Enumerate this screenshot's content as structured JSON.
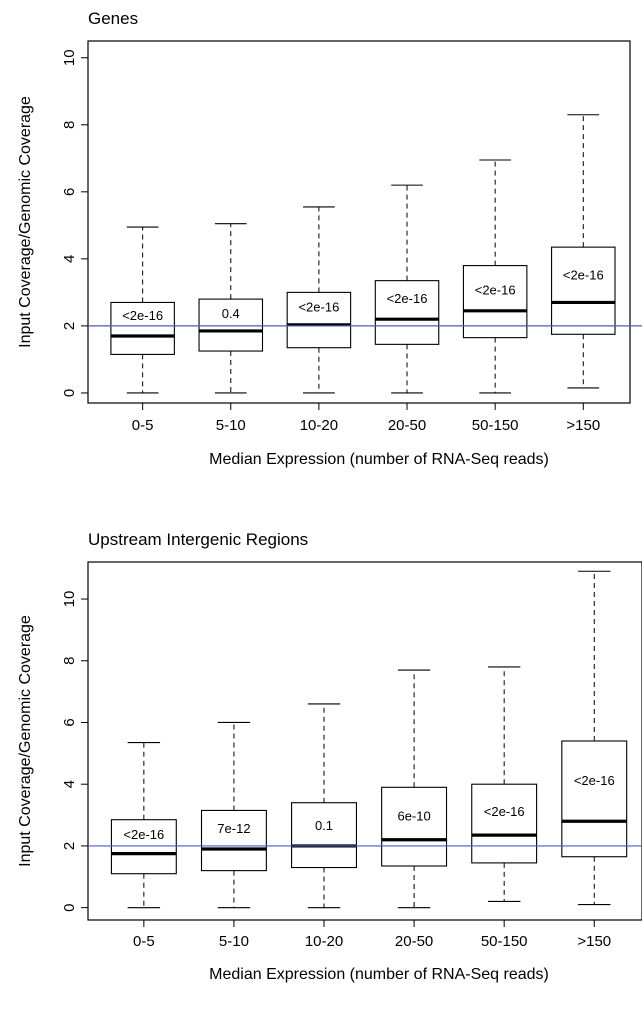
{
  "chart_data": [
    {
      "type": "box",
      "title": "Genes",
      "xlabel": "Median Expression (number of RNA-Seq reads)",
      "ylabel": "Input Coverage/Genomic Coverage",
      "ylim": [
        -0.3,
        10.5
      ],
      "yticks": [
        0,
        2,
        4,
        6,
        8,
        10
      ],
      "reference_line": 2.0,
      "reference_line_color": "#4a5bc4",
      "categories": [
        "0-5",
        "5-10",
        "10-20",
        "20-50",
        "50-150",
        ">150"
      ],
      "boxes": [
        {
          "whisker_low": 0.0,
          "q1": 1.15,
          "median": 1.7,
          "q3": 2.7,
          "whisker_high": 4.95,
          "annotation": "<2e-16",
          "annotation_y": 2.3
        },
        {
          "whisker_low": 0.0,
          "q1": 1.25,
          "median": 1.85,
          "q3": 2.8,
          "whisker_high": 5.05,
          "annotation": "0.4",
          "annotation_y": 2.35
        },
        {
          "whisker_low": 0.0,
          "q1": 1.35,
          "median": 2.03,
          "q3": 3.0,
          "whisker_high": 5.55,
          "annotation": "<2e-16",
          "annotation_y": 2.55
        },
        {
          "whisker_low": 0.0,
          "q1": 1.45,
          "median": 2.2,
          "q3": 3.35,
          "whisker_high": 6.2,
          "annotation": "<2e-16",
          "annotation_y": 2.8
        },
        {
          "whisker_low": 0.0,
          "q1": 1.65,
          "median": 2.45,
          "q3": 3.8,
          "whisker_high": 6.95,
          "annotation": "<2e-16",
          "annotation_y": 3.05
        },
        {
          "whisker_low": 0.15,
          "q1": 1.75,
          "median": 2.7,
          "q3": 4.35,
          "whisker_high": 8.3,
          "annotation": "<2e-16",
          "annotation_y": 3.5
        }
      ]
    },
    {
      "type": "box",
      "title": "Upstream Intergenic Regions",
      "xlabel": "Median Expression (number of RNA-Seq reads)",
      "ylabel": "Input Coverage/Genomic Coverage",
      "ylim": [
        -0.4,
        11.2
      ],
      "yticks": [
        0,
        2,
        4,
        6,
        8,
        10
      ],
      "reference_line": 2.0,
      "reference_line_color": "#4a5bc4",
      "categories": [
        "0-5",
        "5-10",
        "10-20",
        "20-50",
        "50-150",
        ">150"
      ],
      "boxes": [
        {
          "whisker_low": 0.0,
          "q1": 1.1,
          "median": 1.75,
          "q3": 2.85,
          "whisker_high": 5.35,
          "annotation": "<2e-16",
          "annotation_y": 2.35
        },
        {
          "whisker_low": 0.0,
          "q1": 1.2,
          "median": 1.9,
          "q3": 3.15,
          "whisker_high": 6.0,
          "annotation": "7e-12",
          "annotation_y": 2.55
        },
        {
          "whisker_low": 0.0,
          "q1": 1.3,
          "median": 2.0,
          "q3": 3.4,
          "whisker_high": 6.6,
          "annotation": "0.1",
          "annotation_y": 2.65
        },
        {
          "whisker_low": 0.0,
          "q1": 1.35,
          "median": 2.2,
          "q3": 3.9,
          "whisker_high": 7.7,
          "annotation": "6e-10",
          "annotation_y": 2.95
        },
        {
          "whisker_low": 0.2,
          "q1": 1.45,
          "median": 2.35,
          "q3": 4.0,
          "whisker_high": 7.8,
          "annotation": "<2e-16",
          "annotation_y": 3.1
        },
        {
          "whisker_low": 0.1,
          "q1": 1.65,
          "median": 2.8,
          "q3": 5.4,
          "whisker_high": 10.9,
          "annotation": "<2e-16",
          "annotation_y": 4.1
        }
      ]
    }
  ]
}
